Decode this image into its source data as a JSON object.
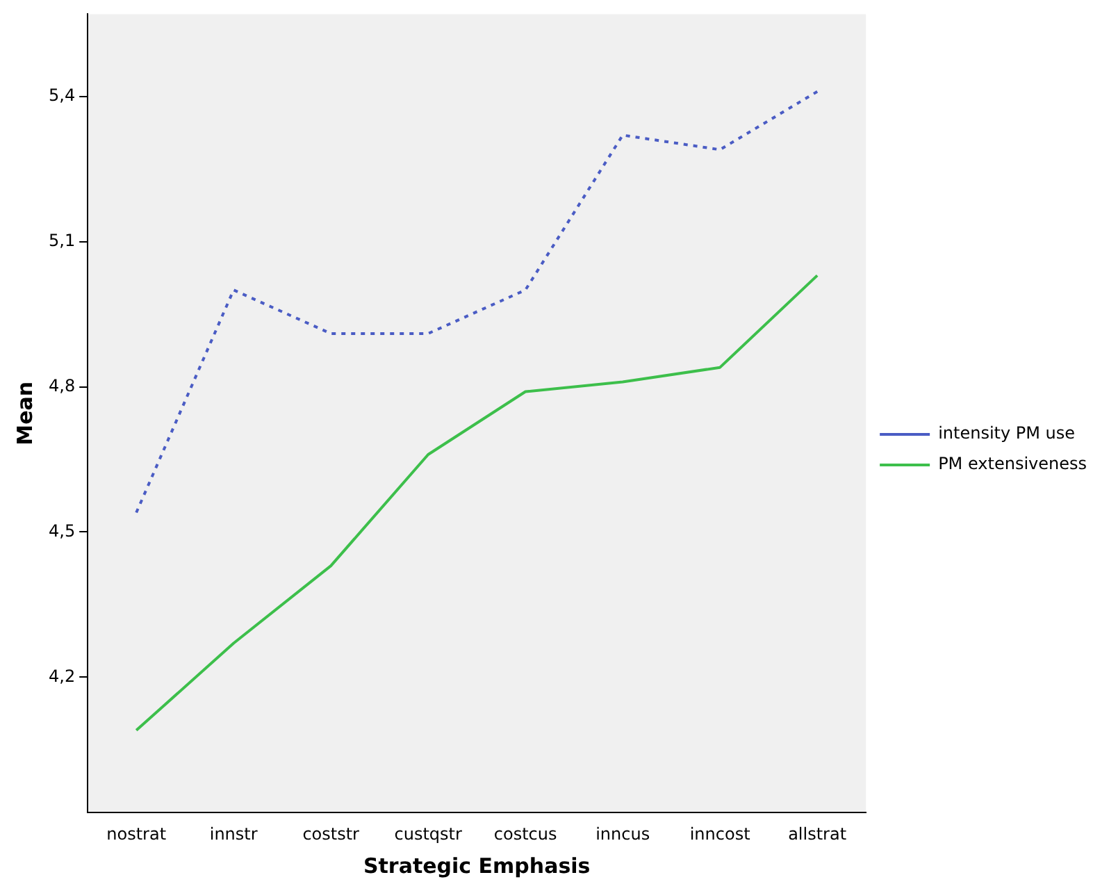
{
  "chart_data": {
    "type": "line",
    "xlabel": "Strategic Emphasis",
    "ylabel": "Mean",
    "categories": [
      "nostrat",
      "innstr",
      "coststr",
      "custqstr",
      "costcus",
      "inncus",
      "inncost",
      "allstrat"
    ],
    "series": [
      {
        "name": "intensity PM use",
        "color": "#4a5cc4",
        "line_style": "dotted",
        "values": [
          4.54,
          5.0,
          4.91,
          4.91,
          5.0,
          5.32,
          5.29,
          5.41
        ]
      },
      {
        "name": "PM extensiveness",
        "color": "#3dbf4b",
        "line_style": "solid",
        "values": [
          4.09,
          4.27,
          4.43,
          4.66,
          4.79,
          4.81,
          4.84,
          5.03
        ]
      }
    ],
    "ylim": [
      3.92,
      5.57
    ],
    "yticks": [
      {
        "value": 4.2,
        "label": "4,2"
      },
      {
        "value": 4.5,
        "label": "4,5"
      },
      {
        "value": 4.8,
        "label": "4,8"
      },
      {
        "value": 5.1,
        "label": "5,1"
      },
      {
        "value": 5.4,
        "label": "5,4"
      }
    ],
    "grid": false,
    "legend": "right",
    "marker": "none"
  }
}
